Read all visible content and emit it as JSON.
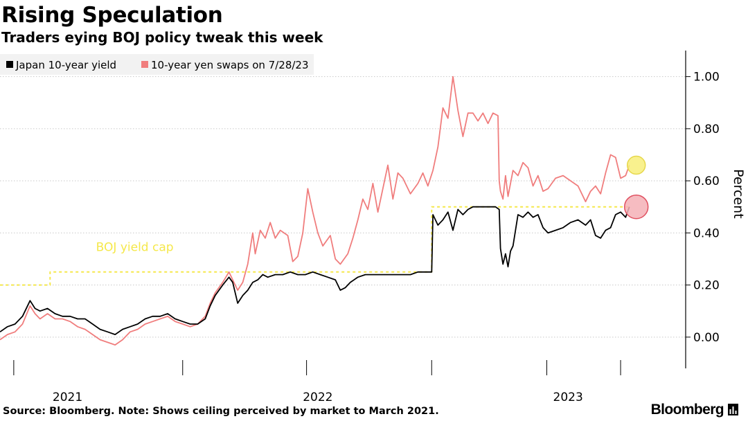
{
  "header": {
    "title": "Rising Speculation",
    "subtitle": "Traders eying BOJ policy tweak this week"
  },
  "footer": {
    "source": "Source: Bloomberg. Note: Shows ceiling perceived by market to March 2021.",
    "logo": "Bloomberg"
  },
  "colors": {
    "yield": "#000000",
    "swaps": "#f07d7d",
    "cap": "#f5e84a",
    "yield_marker": "#f5b0b6",
    "swaps_marker": "#f8ee7a"
  },
  "chart_data": {
    "type": "line",
    "ylabel": "Percent",
    "ylim": [
      -0.12,
      1.1
    ],
    "yticks": [
      {
        "value": 0.0,
        "label": "0.00"
      },
      {
        "value": 0.2,
        "label": "0.20"
      },
      {
        "value": 0.4,
        "label": "0.40"
      },
      {
        "value": 0.6,
        "label": "0.60"
      },
      {
        "value": 0.8,
        "label": "0.80"
      },
      {
        "value": 1.0,
        "label": "1.00"
      }
    ],
    "xlim": [
      2020.73,
      2023.47
    ],
    "xticks": [
      {
        "value": 2021.0,
        "label": "2021"
      },
      {
        "value": 2022.0,
        "label": "2022"
      },
      {
        "value": 2023.0,
        "label": "2023"
      }
    ],
    "legend": {
      "placement": "top-left"
    },
    "grid": "horizontal dotted",
    "annotations": [
      {
        "text": "BOJ yield cap",
        "x": 2021.1,
        "y": 0.33
      }
    ],
    "series": [
      {
        "name": "Japan 10-year yield",
        "key": "yield",
        "points": [
          [
            2020.73,
            0.02
          ],
          [
            2020.76,
            0.04
          ],
          [
            2020.79,
            0.05
          ],
          [
            2020.82,
            0.08
          ],
          [
            2020.85,
            0.14
          ],
          [
            2020.87,
            0.11
          ],
          [
            2020.89,
            0.1
          ],
          [
            2020.92,
            0.11
          ],
          [
            2020.95,
            0.09
          ],
          [
            2020.98,
            0.08
          ],
          [
            2021.01,
            0.08
          ],
          [
            2021.04,
            0.07
          ],
          [
            2021.07,
            0.07
          ],
          [
            2021.1,
            0.05
          ],
          [
            2021.13,
            0.03
          ],
          [
            2021.16,
            0.02
          ],
          [
            2021.19,
            0.01
          ],
          [
            2021.22,
            0.03
          ],
          [
            2021.25,
            0.04
          ],
          [
            2021.28,
            0.05
          ],
          [
            2021.31,
            0.07
          ],
          [
            2021.34,
            0.08
          ],
          [
            2021.37,
            0.08
          ],
          [
            2021.4,
            0.09
          ],
          [
            2021.43,
            0.07
          ],
          [
            2021.46,
            0.06
          ],
          [
            2021.49,
            0.05
          ],
          [
            2021.52,
            0.05
          ],
          [
            2021.55,
            0.07
          ],
          [
            2021.57,
            0.12
          ],
          [
            2021.59,
            0.16
          ],
          [
            2021.62,
            0.2
          ],
          [
            2021.645,
            0.23
          ],
          [
            2021.66,
            0.21
          ],
          [
            2021.68,
            0.13
          ],
          [
            2021.7,
            0.16
          ],
          [
            2021.72,
            0.18
          ],
          [
            2021.74,
            0.21
          ],
          [
            2021.76,
            0.22
          ],
          [
            2021.78,
            0.24
          ],
          [
            2021.8,
            0.23
          ],
          [
            2021.83,
            0.24
          ],
          [
            2021.86,
            0.24
          ],
          [
            2021.89,
            0.25
          ],
          [
            2021.92,
            0.24
          ],
          [
            2021.95,
            0.24
          ],
          [
            2021.98,
            0.25
          ],
          [
            2022.01,
            0.24
          ],
          [
            2022.04,
            0.23
          ],
          [
            2022.07,
            0.22
          ],
          [
            2022.09,
            0.18
          ],
          [
            2022.11,
            0.19
          ],
          [
            2022.13,
            0.21
          ],
          [
            2022.16,
            0.23
          ],
          [
            2022.19,
            0.24
          ],
          [
            2022.22,
            0.24
          ],
          [
            2022.25,
            0.24
          ],
          [
            2022.28,
            0.24
          ],
          [
            2022.31,
            0.24
          ],
          [
            2022.34,
            0.24
          ],
          [
            2022.37,
            0.24
          ],
          [
            2022.4,
            0.25
          ],
          [
            2022.43,
            0.25
          ],
          [
            2022.455,
            0.25
          ],
          [
            2022.46,
            0.47
          ],
          [
            2022.48,
            0.43
          ],
          [
            2022.5,
            0.45
          ],
          [
            2022.52,
            0.48
          ],
          [
            2022.54,
            0.41
          ],
          [
            2022.56,
            0.49
          ],
          [
            2022.58,
            0.47
          ],
          [
            2022.6,
            0.49
          ],
          [
            2022.62,
            0.5
          ],
          [
            2022.64,
            0.5
          ],
          [
            2022.67,
            0.5
          ],
          [
            2022.71,
            0.5
          ],
          [
            2022.725,
            0.49
          ],
          [
            2022.73,
            0.34
          ],
          [
            2022.74,
            0.28
          ],
          [
            2022.75,
            0.32
          ],
          [
            2022.76,
            0.27
          ],
          [
            2022.77,
            0.33
          ],
          [
            2022.78,
            0.35
          ],
          [
            2022.8,
            0.47
          ],
          [
            2022.82,
            0.46
          ],
          [
            2022.84,
            0.48
          ],
          [
            2022.86,
            0.46
          ],
          [
            2022.88,
            0.47
          ],
          [
            2022.9,
            0.42
          ],
          [
            2022.92,
            0.4
          ],
          [
            2022.95,
            0.41
          ],
          [
            2022.98,
            0.42
          ],
          [
            2023.01,
            0.44
          ],
          [
            2023.04,
            0.45
          ],
          [
            2023.07,
            0.43
          ],
          [
            2023.09,
            0.45
          ],
          [
            2023.11,
            0.39
          ],
          [
            2023.13,
            0.38
          ],
          [
            2023.15,
            0.41
          ],
          [
            2023.17,
            0.42
          ],
          [
            2023.19,
            0.47
          ],
          [
            2023.21,
            0.48
          ],
          [
            2023.23,
            0.46
          ],
          [
            2023.245,
            0.5
          ]
        ]
      },
      {
        "name": "10-year yen swaps on 7/28/23",
        "key": "swaps",
        "points": [
          [
            2020.73,
            -0.01
          ],
          [
            2020.76,
            0.01
          ],
          [
            2020.79,
            0.02
          ],
          [
            2020.82,
            0.05
          ],
          [
            2020.85,
            0.12
          ],
          [
            2020.87,
            0.09
          ],
          [
            2020.89,
            0.07
          ],
          [
            2020.92,
            0.09
          ],
          [
            2020.95,
            0.07
          ],
          [
            2020.98,
            0.07
          ],
          [
            2021.01,
            0.06
          ],
          [
            2021.04,
            0.04
          ],
          [
            2021.07,
            0.03
          ],
          [
            2021.1,
            0.01
          ],
          [
            2021.13,
            -0.01
          ],
          [
            2021.16,
            -0.02
          ],
          [
            2021.19,
            -0.03
          ],
          [
            2021.22,
            -0.01
          ],
          [
            2021.25,
            0.02
          ],
          [
            2021.28,
            0.03
          ],
          [
            2021.31,
            0.05
          ],
          [
            2021.34,
            0.06
          ],
          [
            2021.37,
            0.07
          ],
          [
            2021.4,
            0.08
          ],
          [
            2021.43,
            0.06
          ],
          [
            2021.46,
            0.05
          ],
          [
            2021.49,
            0.04
          ],
          [
            2021.52,
            0.05
          ],
          [
            2021.55,
            0.08
          ],
          [
            2021.57,
            0.13
          ],
          [
            2021.59,
            0.17
          ],
          [
            2021.62,
            0.21
          ],
          [
            2021.645,
            0.25
          ],
          [
            2021.66,
            0.22
          ],
          [
            2021.68,
            0.18
          ],
          [
            2021.7,
            0.21
          ],
          [
            2021.72,
            0.28
          ],
          [
            2021.74,
            0.4
          ],
          [
            2021.75,
            0.32
          ],
          [
            2021.77,
            0.41
          ],
          [
            2021.79,
            0.38
          ],
          [
            2021.81,
            0.44
          ],
          [
            2021.83,
            0.38
          ],
          [
            2021.85,
            0.41
          ],
          [
            2021.88,
            0.39
          ],
          [
            2021.9,
            0.29
          ],
          [
            2021.92,
            0.31
          ],
          [
            2021.94,
            0.4
          ],
          [
            2021.96,
            0.57
          ],
          [
            2021.98,
            0.48
          ],
          [
            2022.0,
            0.4
          ],
          [
            2022.02,
            0.35
          ],
          [
            2022.05,
            0.39
          ],
          [
            2022.07,
            0.3
          ],
          [
            2022.09,
            0.28
          ],
          [
            2022.12,
            0.32
          ],
          [
            2022.14,
            0.38
          ],
          [
            2022.16,
            0.45
          ],
          [
            2022.18,
            0.53
          ],
          [
            2022.2,
            0.49
          ],
          [
            2022.22,
            0.59
          ],
          [
            2022.24,
            0.48
          ],
          [
            2022.26,
            0.57
          ],
          [
            2022.28,
            0.66
          ],
          [
            2022.3,
            0.53
          ],
          [
            2022.32,
            0.63
          ],
          [
            2022.34,
            0.61
          ],
          [
            2022.37,
            0.55
          ],
          [
            2022.4,
            0.59
          ],
          [
            2022.42,
            0.63
          ],
          [
            2022.44,
            0.58
          ],
          [
            2022.46,
            0.64
          ],
          [
            2022.48,
            0.73
          ],
          [
            2022.5,
            0.88
          ],
          [
            2022.52,
            0.84
          ],
          [
            2022.54,
            1.0
          ],
          [
            2022.56,
            0.87
          ],
          [
            2022.58,
            0.77
          ],
          [
            2022.6,
            0.86
          ],
          [
            2022.62,
            0.86
          ],
          [
            2022.64,
            0.83
          ],
          [
            2022.66,
            0.86
          ],
          [
            2022.68,
            0.82
          ],
          [
            2022.7,
            0.86
          ],
          [
            2022.72,
            0.85
          ],
          [
            2022.725,
            0.6
          ],
          [
            2022.73,
            0.56
          ],
          [
            2022.74,
            0.53
          ],
          [
            2022.75,
            0.62
          ],
          [
            2022.76,
            0.54
          ],
          [
            2022.78,
            0.64
          ],
          [
            2022.8,
            0.62
          ],
          [
            2022.82,
            0.67
          ],
          [
            2022.84,
            0.65
          ],
          [
            2022.86,
            0.58
          ],
          [
            2022.88,
            0.62
          ],
          [
            2022.9,
            0.56
          ],
          [
            2022.92,
            0.57
          ],
          [
            2022.95,
            0.61
          ],
          [
            2022.98,
            0.62
          ],
          [
            2023.01,
            0.6
          ],
          [
            2023.04,
            0.58
          ],
          [
            2023.07,
            0.52
          ],
          [
            2023.09,
            0.56
          ],
          [
            2023.11,
            0.58
          ],
          [
            2023.13,
            0.55
          ],
          [
            2023.15,
            0.63
          ],
          [
            2023.17,
            0.7
          ],
          [
            2023.19,
            0.69
          ],
          [
            2023.21,
            0.61
          ],
          [
            2023.23,
            0.62
          ],
          [
            2023.245,
            0.66
          ]
        ]
      },
      {
        "name": "BOJ yield cap",
        "key": "cap",
        "style": "dashed-step",
        "points": [
          [
            2020.73,
            0.2
          ],
          [
            2020.93,
            0.2
          ],
          [
            2020.93,
            0.25
          ],
          [
            2022.455,
            0.25
          ],
          [
            2022.455,
            0.5
          ],
          [
            2023.245,
            0.5
          ]
        ]
      }
    ],
    "markers": [
      {
        "series": "yield",
        "x": 2023.245,
        "y": 0.5,
        "colorKey": "yield_marker"
      },
      {
        "series": "swaps",
        "x": 2023.245,
        "y": 0.66,
        "colorKey": "swaps_marker"
      }
    ]
  }
}
